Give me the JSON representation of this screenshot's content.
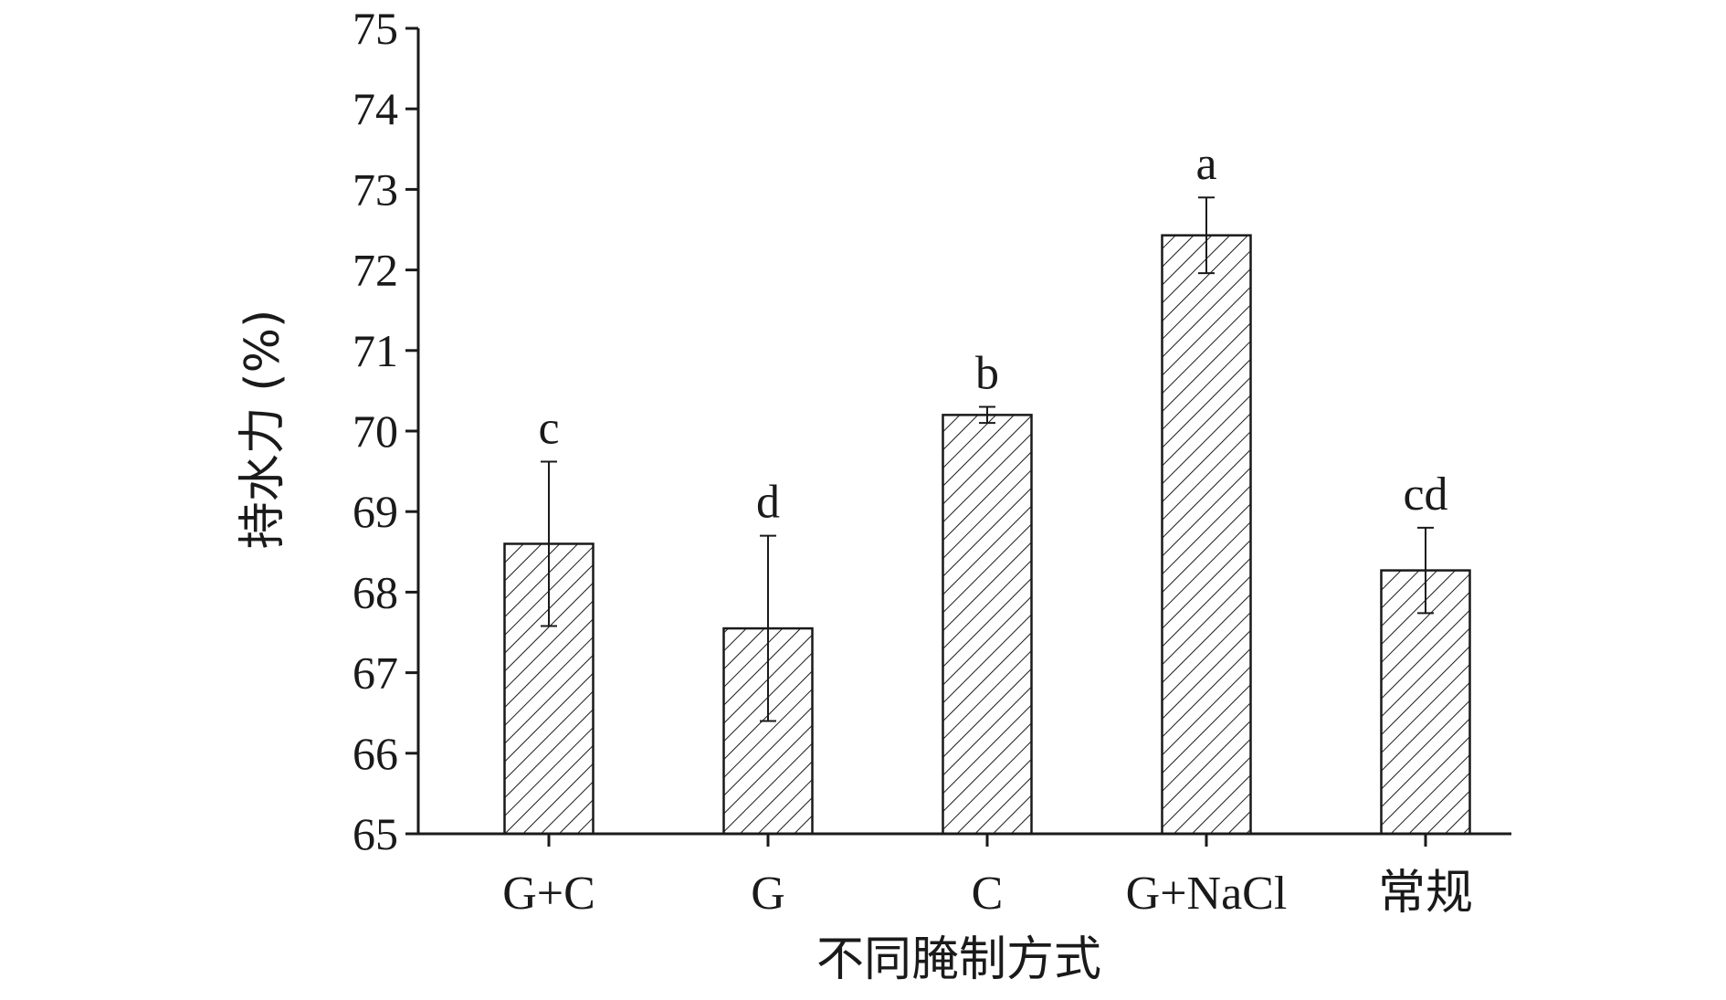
{
  "chart_data": {
    "type": "bar",
    "title": "",
    "xlabel": "不同腌制方式",
    "ylabel": "持水力 (%)",
    "ylim": [
      65,
      75
    ],
    "yticks": [
      "65",
      "66",
      "67",
      "68",
      "69",
      "70",
      "71",
      "72",
      "73",
      "74",
      "75"
    ],
    "categories": [
      "G+C",
      "G",
      "C",
      "G+NaCl",
      "常规"
    ],
    "values": [
      68.6,
      67.55,
      70.2,
      72.43,
      68.27
    ],
    "errors": [
      1.02,
      1.15,
      0.1,
      0.47,
      0.53
    ],
    "significance_labels": [
      "c",
      "d",
      "b",
      "a",
      "cd"
    ],
    "bar_pattern": "diagonal-hatch",
    "bar_color": "#1a1a1a",
    "grid": false,
    "legend": "none"
  }
}
